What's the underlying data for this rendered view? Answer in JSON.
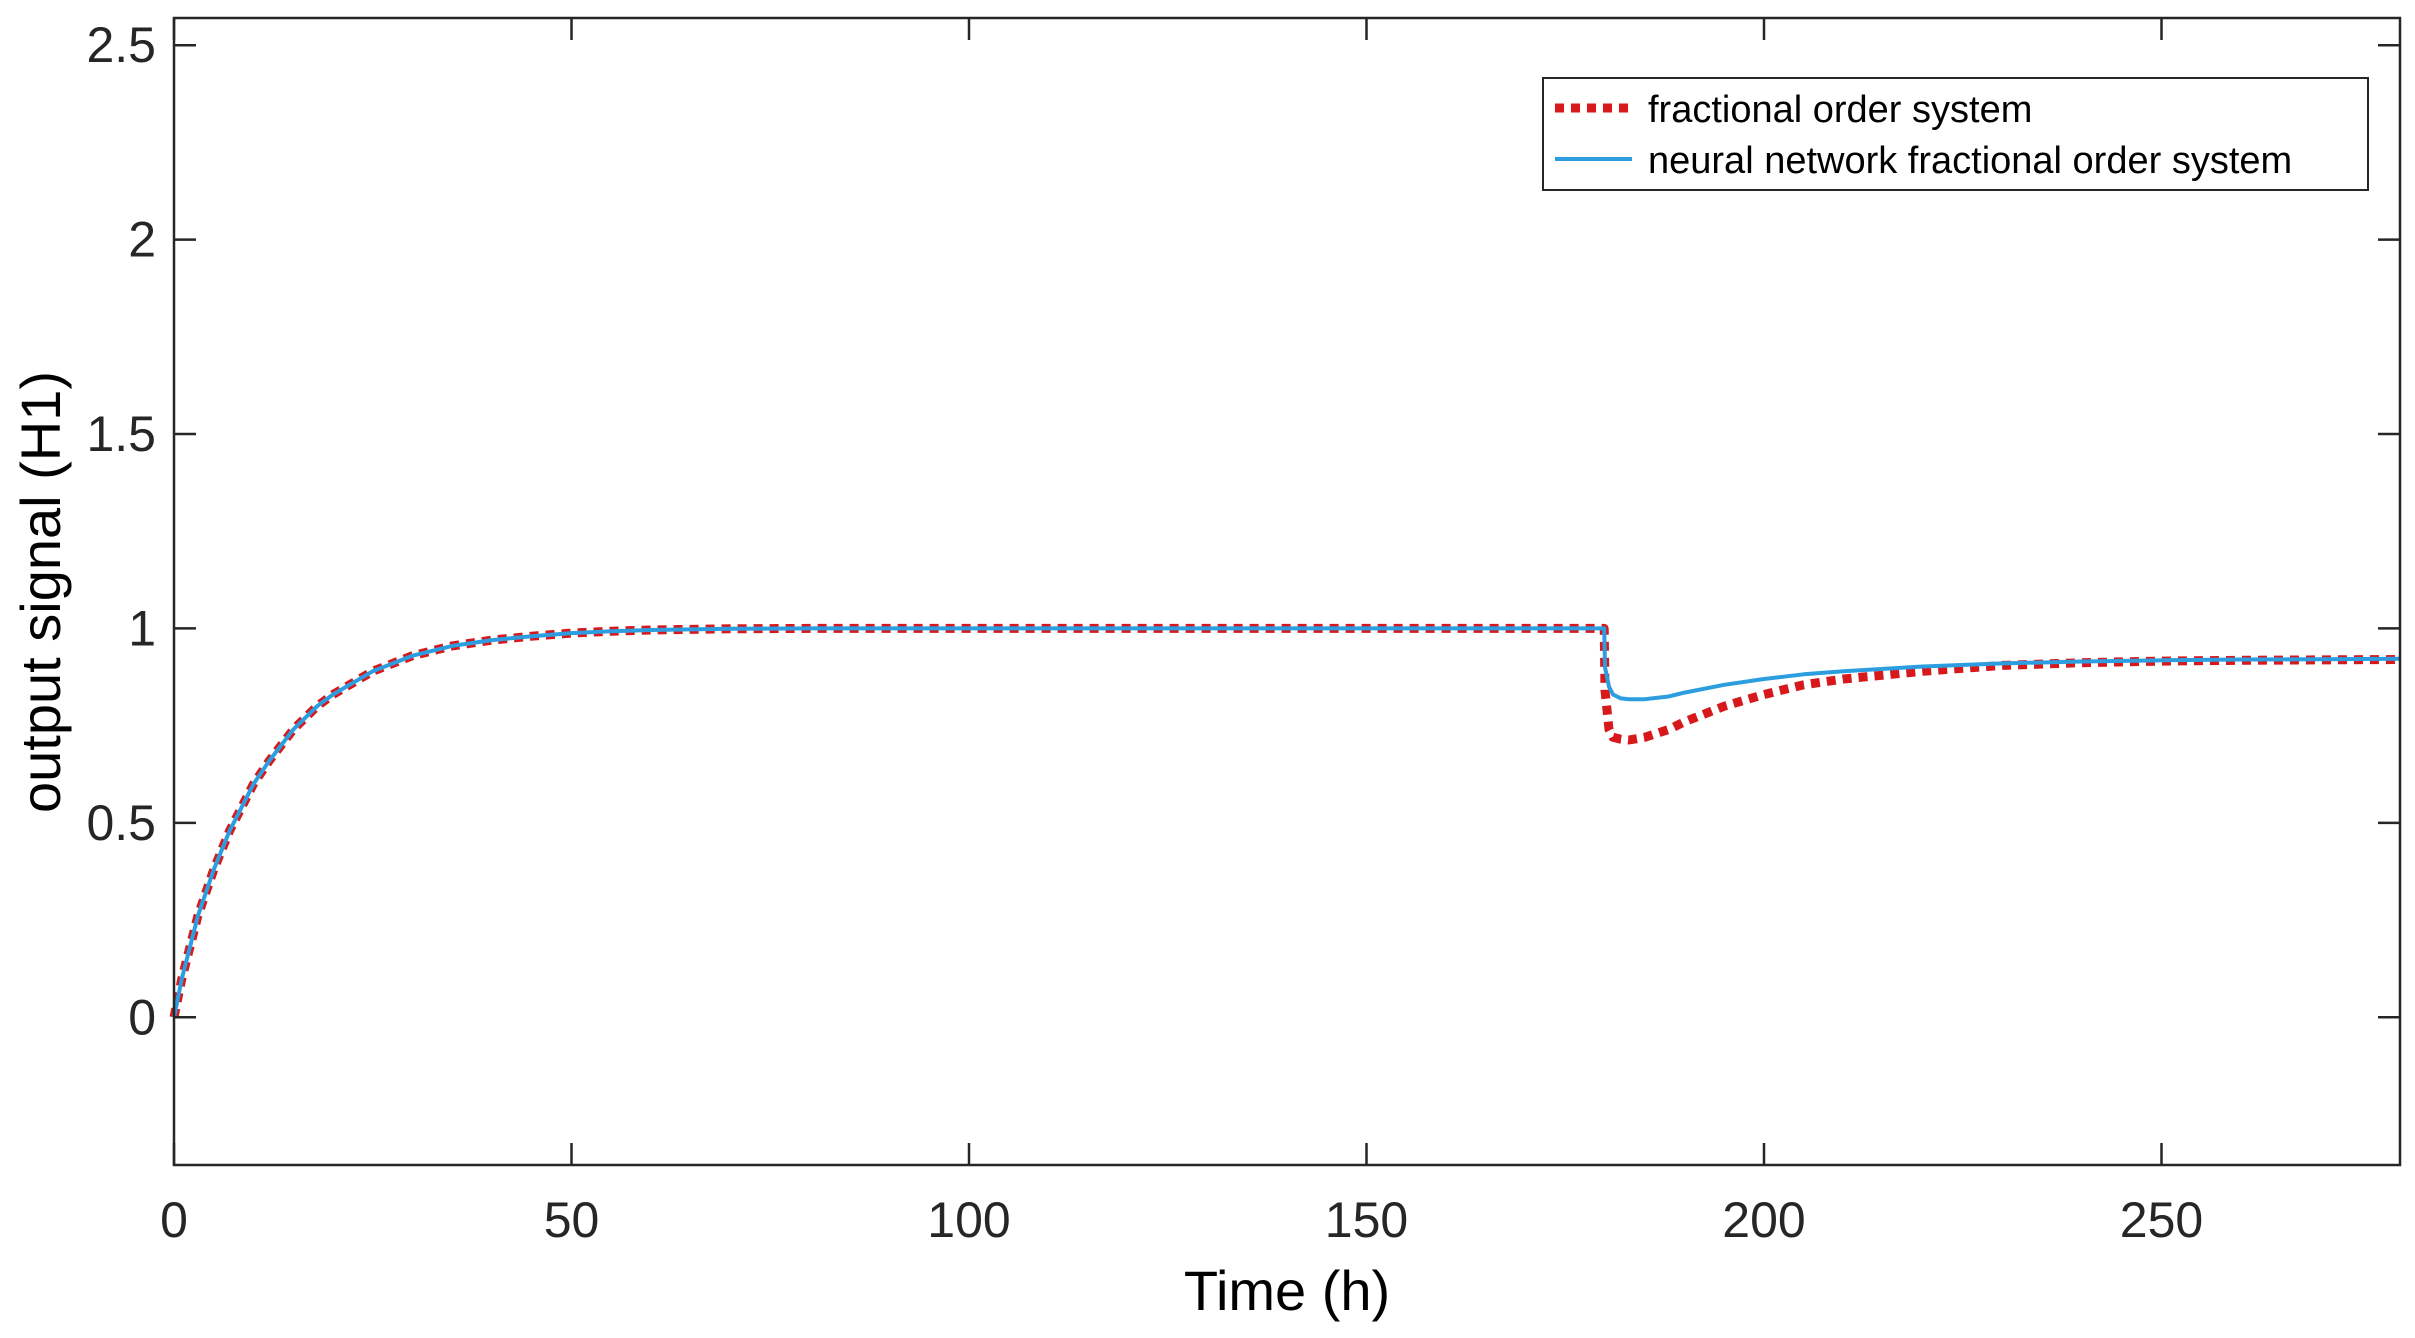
{
  "chart_data": {
    "type": "line",
    "title": "",
    "xlabel": "Time (h)",
    "ylabel": "output signal (H1)",
    "xlim": [
      0,
      280
    ],
    "ylim": [
      -0.38,
      2.57
    ],
    "xticks": [
      0,
      50,
      100,
      150,
      200,
      250
    ],
    "xtick_labels": [
      "0",
      "50",
      "100",
      "150",
      "200",
      "250"
    ],
    "yticks": [
      0,
      0.5,
      1,
      1.5,
      2,
      2.5
    ],
    "ytick_labels": [
      "0",
      "0.5",
      "1",
      "1.5",
      "2",
      "2.5"
    ],
    "grid": false,
    "legend_position": "top-right",
    "series": [
      {
        "name": "fractional order system",
        "color": "#d7191c",
        "style": "dotted",
        "x": [
          0,
          1,
          2,
          3,
          5,
          7,
          10,
          12,
          15,
          18,
          20,
          25,
          30,
          35,
          40,
          45,
          50,
          55,
          60,
          70,
          80,
          100,
          120,
          150,
          179.9,
          180,
          180.5,
          181,
          182,
          183,
          185,
          188,
          190,
          195,
          200,
          205,
          210,
          220,
          230,
          240,
          250,
          260,
          270,
          280
        ],
        "y": [
          0.0,
          0.1,
          0.18,
          0.26,
          0.38,
          0.48,
          0.6,
          0.66,
          0.74,
          0.8,
          0.83,
          0.89,
          0.93,
          0.955,
          0.97,
          0.98,
          0.988,
          0.993,
          0.996,
          0.999,
          1.0,
          1.0,
          1.0,
          1.0,
          1.0,
          0.84,
          0.74,
          0.72,
          0.715,
          0.713,
          0.72,
          0.74,
          0.76,
          0.8,
          0.83,
          0.855,
          0.87,
          0.89,
          0.905,
          0.912,
          0.916,
          0.918,
          0.919,
          0.92
        ]
      },
      {
        "name": "neural network fractional order system",
        "color": "#2c9ee0",
        "style": "solid",
        "x": [
          0,
          1,
          2,
          3,
          5,
          7,
          10,
          12,
          15,
          18,
          20,
          25,
          30,
          35,
          40,
          45,
          50,
          55,
          60,
          70,
          80,
          100,
          120,
          150,
          179.9,
          180,
          180.5,
          181,
          182,
          183,
          185,
          188,
          190,
          195,
          200,
          205,
          210,
          220,
          230,
          240,
          250,
          260,
          270,
          280
        ],
        "y": [
          0.0,
          0.1,
          0.18,
          0.26,
          0.38,
          0.48,
          0.6,
          0.66,
          0.74,
          0.8,
          0.83,
          0.89,
          0.93,
          0.955,
          0.97,
          0.98,
          0.988,
          0.993,
          0.996,
          0.999,
          1.0,
          1.0,
          1.0,
          1.0,
          1.0,
          0.9,
          0.85,
          0.83,
          0.82,
          0.818,
          0.818,
          0.825,
          0.835,
          0.855,
          0.87,
          0.882,
          0.89,
          0.902,
          0.91,
          0.915,
          0.918,
          0.92,
          0.921,
          0.922
        ]
      }
    ]
  }
}
